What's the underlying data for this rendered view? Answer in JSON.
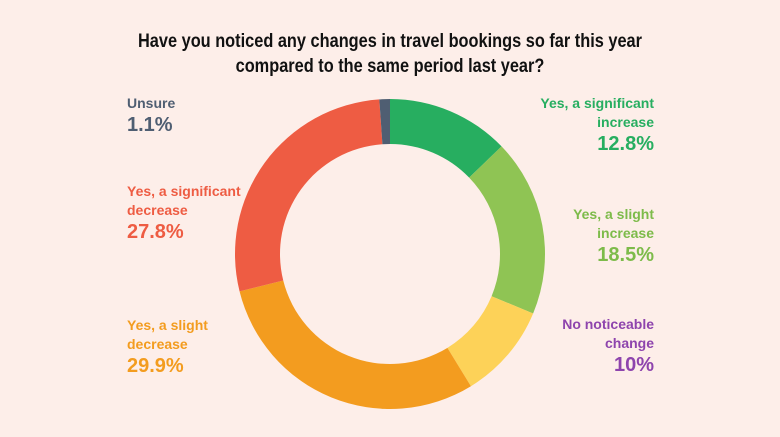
{
  "chart_data": {
    "type": "pie",
    "variant": "donut",
    "title": "Have you noticed any changes in travel bookings so far this year compared to the same period last year?",
    "title_lines": [
      "Have you noticed any changes in travel bookings so far this year",
      "compared to the same period last year?"
    ],
    "start_angle": "top",
    "direction": "clockwise",
    "slices": [
      {
        "label": "Yes, a significant increase",
        "label_lines": [
          "Yes, a significant",
          "increase"
        ],
        "value": 12.8,
        "display": "12.8%",
        "color": "#27ae60",
        "label_color": "#27ae60"
      },
      {
        "label": "Yes, a slight increase",
        "label_lines": [
          "Yes, a slight",
          "increase"
        ],
        "value": 18.5,
        "display": "18.5%",
        "color": "#8fc454",
        "label_color": "#7dbb4a"
      },
      {
        "label": "No noticeable change",
        "label_lines": [
          "No noticeable",
          "change"
        ],
        "value": 10,
        "display": "10%",
        "color": "#fdd258",
        "label_color": "#8e44ad"
      },
      {
        "label": "Yes, a slight decrease",
        "label_lines": [
          "Yes, a slight",
          "decrease"
        ],
        "value": 29.9,
        "display": "29.9%",
        "color": "#f39c1f",
        "label_color": "#f39c1f"
      },
      {
        "label": "Yes, a significant decrease",
        "label_lines": [
          "Yes, a significant",
          "decrease"
        ],
        "value": 27.8,
        "display": "27.8%",
        "color": "#ee5c43",
        "label_color": "#ee5c43"
      },
      {
        "label": "Unsure",
        "label_lines": [
          "Unsure"
        ],
        "value": 1.1,
        "display": "1.1%",
        "color": "#4f5e72",
        "label_color": "#4f5e72"
      }
    ],
    "legend_position": "around"
  },
  "colors": {
    "background": "#fdeee9",
    "title": "#111111"
  }
}
